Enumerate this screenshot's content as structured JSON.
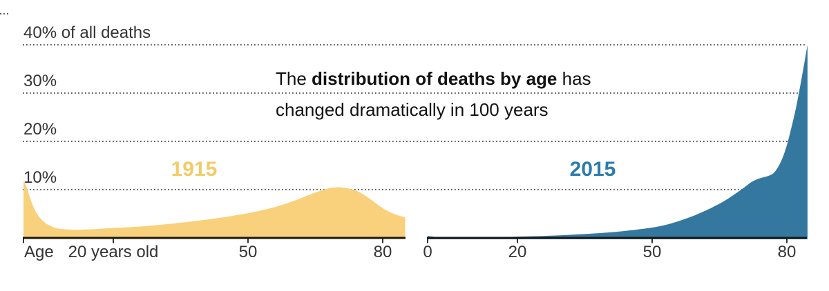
{
  "title": {
    "prefix": "The ",
    "bold": "distribution of deaths by age",
    "suffix": " has",
    "line2": "changed dramatically in 100 years"
  },
  "y_axis": {
    "unit": "% of all deaths",
    "range": [
      0,
      40
    ],
    "gridlines_pct": [
      40,
      30,
      20,
      10
    ],
    "labels": [
      "40% of all deaths",
      "30%",
      "20%",
      "10%"
    ]
  },
  "colors": {
    "background": "#ffffff",
    "gridline": "#4b4b4b",
    "axis": "#1a1a1a",
    "tick": "#333333",
    "label_text": "#333333",
    "title_text": "#121212"
  },
  "chart_data": [
    {
      "type": "area",
      "name": "1915",
      "series_label": "1915",
      "fill_color": "#F9D17C",
      "label_color": "#F3CB67",
      "x_range": [
        0,
        85
      ],
      "xlabel": "Age",
      "x_ticks": [
        {
          "age": 0,
          "label": "Age",
          "align": "left"
        },
        {
          "age": 20,
          "label": "20 years old"
        },
        {
          "age": 50,
          "label": "50"
        },
        {
          "age": 80,
          "label": "80"
        }
      ],
      "points": [
        [
          0,
          11.8
        ],
        [
          0.5,
          11.0
        ],
        [
          1,
          9.6
        ],
        [
          1.5,
          8.2
        ],
        [
          2,
          6.9
        ],
        [
          3,
          5.0
        ],
        [
          4,
          3.8
        ],
        [
          5,
          3.0
        ],
        [
          6,
          2.5
        ],
        [
          7,
          2.1
        ],
        [
          8,
          1.9
        ],
        [
          10,
          1.75
        ],
        [
          12,
          1.7
        ],
        [
          15,
          1.78
        ],
        [
          18,
          1.95
        ],
        [
          20,
          2.05
        ],
        [
          24,
          2.25
        ],
        [
          28,
          2.5
        ],
        [
          32,
          2.85
        ],
        [
          36,
          3.25
        ],
        [
          40,
          3.7
        ],
        [
          44,
          4.2
        ],
        [
          48,
          4.8
        ],
        [
          52,
          5.5
        ],
        [
          56,
          6.4
        ],
        [
          60,
          7.6
        ],
        [
          63,
          8.7
        ],
        [
          65,
          9.4
        ],
        [
          67,
          10.0
        ],
        [
          68.5,
          10.35
        ],
        [
          70,
          10.5
        ],
        [
          71.5,
          10.4
        ],
        [
          73,
          10.1
        ],
        [
          75,
          9.4
        ],
        [
          77,
          8.2
        ],
        [
          79,
          6.8
        ],
        [
          81,
          5.6
        ],
        [
          83,
          4.8
        ],
        [
          85,
          4.25
        ]
      ]
    },
    {
      "type": "area",
      "name": "2015",
      "series_label": "2015",
      "fill_color": "#35789F",
      "label_color": "#2A7CAD",
      "x_range": [
        0,
        84.6
      ],
      "xlabel": "Age",
      "x_ticks": [
        {
          "age": 0,
          "label": "0"
        },
        {
          "age": 20,
          "label": "20"
        },
        {
          "age": 50,
          "label": "50"
        },
        {
          "age": 80,
          "label": "80"
        }
      ],
      "points": [
        [
          0,
          0.4
        ],
        [
          2,
          0.2
        ],
        [
          5,
          0.12
        ],
        [
          10,
          0.1
        ],
        [
          15,
          0.15
        ],
        [
          20,
          0.25
        ],
        [
          25,
          0.38
        ],
        [
          30,
          0.55
        ],
        [
          35,
          0.8
        ],
        [
          40,
          1.1
        ],
        [
          45,
          1.55
        ],
        [
          50,
          2.15
        ],
        [
          53,
          2.7
        ],
        [
          56,
          3.5
        ],
        [
          59,
          4.5
        ],
        [
          62,
          5.7
        ],
        [
          64,
          6.6
        ],
        [
          66,
          7.6
        ],
        [
          68,
          8.8
        ],
        [
          70,
          10.1
        ],
        [
          71,
          10.8
        ],
        [
          72,
          11.5
        ],
        [
          73,
          12.0
        ],
        [
          74,
          12.35
        ],
        [
          75,
          12.6
        ],
        [
          76,
          12.9
        ],
        [
          77,
          13.4
        ],
        [
          78,
          14.6
        ],
        [
          79,
          16.5
        ],
        [
          80,
          19.2
        ],
        [
          81,
          22.8
        ],
        [
          82,
          26.8
        ],
        [
          83,
          31.6
        ],
        [
          84,
          36.8
        ],
        [
          84.6,
          40.0
        ]
      ]
    }
  ]
}
